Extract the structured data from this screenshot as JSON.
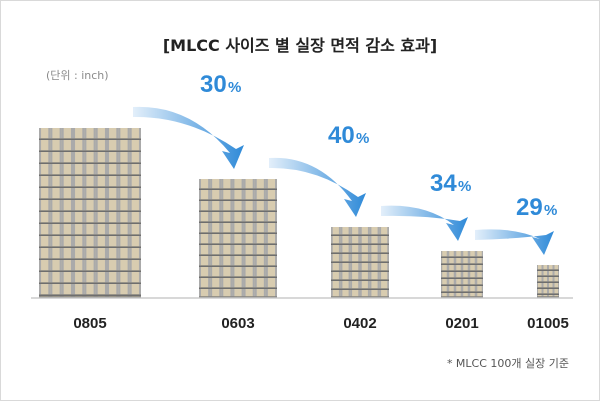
{
  "title": "[MLCC 사이즈 별 실장 면적 감소 효과]",
  "unit_note": "(단위 : inch)",
  "footnote": "* MLCC 100개 실장 기준",
  "colors": {
    "chip_body": "#d8ccb0",
    "chip_terminal": "#aaaaaa",
    "row_shadow": "#6e6e6e",
    "arrow_start": "#e3effa",
    "arrow_end": "#2f8ad8",
    "percent_text": "#2f8ad8",
    "baseline": "#cccccc"
  },
  "chart_data": {
    "type": "bar",
    "categories": [
      "0805",
      "0603",
      "0402",
      "0201",
      "01005"
    ],
    "values": [
      100,
      70,
      42,
      27.7,
      19.7
    ],
    "reductions": [
      {
        "from": "0805",
        "to": "0603",
        "value": 30,
        "label": "30",
        "suffix": "%"
      },
      {
        "from": "0603",
        "to": "0402",
        "value": 40,
        "label": "40",
        "suffix": "%"
      },
      {
        "from": "0402",
        "to": "0201",
        "value": 34,
        "label": "34",
        "suffix": "%"
      },
      {
        "from": "0201",
        "to": "01005",
        "value": 29,
        "label": "29",
        "suffix": "%"
      }
    ],
    "title": "[MLCC 사이즈 별 실장 면적 감소 효과]",
    "xlabel": "",
    "ylabel": "",
    "grid": false,
    "legend": "none"
  }
}
